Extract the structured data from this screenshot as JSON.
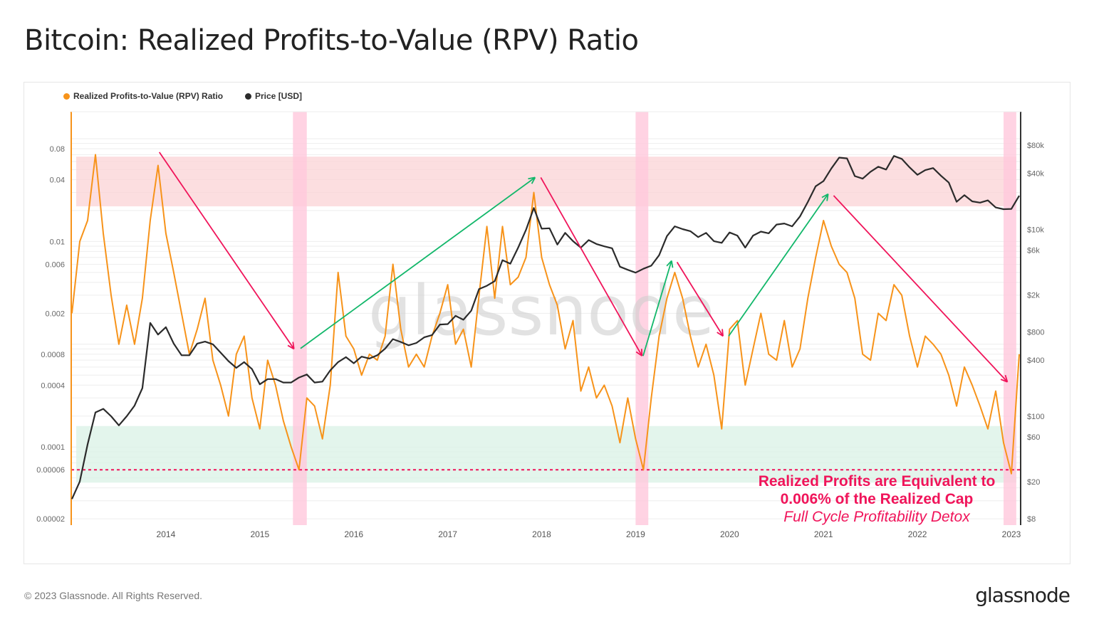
{
  "title": "Bitcoin: Realized Profits-to-Value (RPV) Ratio",
  "footer": {
    "copyright": "© 2023 Glassnode. All Rights Reserved.",
    "logo": "glassnode"
  },
  "watermark": "glassnode",
  "colors": {
    "rpv": "#f7931a",
    "price": "#2b2b2b",
    "red_zone": "#fbd3d6",
    "green_zone": "#d9f2e6",
    "capitulation_band": "#ffc8dc",
    "down_arrow": "#f0145a",
    "up_arrow": "#12b76a",
    "annotation": "#f0145a"
  },
  "chart_data": {
    "type": "line",
    "title": "Bitcoin: Realized Profits-to-Value (RPV) Ratio",
    "legend": [
      {
        "label": "Realized Profits-to-Value (RPV) Ratio",
        "color": "#f7931a"
      },
      {
        "label": "Price [USD]",
        "color": "#2b2b2b"
      }
    ],
    "legend_placement": "top-left",
    "x_ticks": [
      "2014",
      "2015",
      "2016",
      "2017",
      "2018",
      "2019",
      "2020",
      "2021",
      "2022",
      "2023"
    ],
    "y_left": {
      "scale": "log",
      "range": [
        2e-05,
        0.08
      ],
      "ticks": [
        "0.08",
        "0.04",
        "0.01",
        "0.006",
        "0.002",
        "0.0008",
        "0.0004",
        "0.0001",
        "0.00006",
        "0.00002"
      ]
    },
    "y_right": {
      "scale": "log",
      "range": [
        8,
        80000
      ],
      "ticks": [
        {
          "v": 80000,
          "l": "$80k"
        },
        {
          "v": 40000,
          "l": "$40k"
        },
        {
          "v": 10000,
          "l": "$10k"
        },
        {
          "v": 6000,
          "l": "$6k"
        },
        {
          "v": 2000,
          "l": "$2k"
        },
        {
          "v": 800,
          "l": "$800"
        },
        {
          "v": 400,
          "l": "$400"
        },
        {
          "v": 100,
          "l": "$100"
        },
        {
          "v": 60,
          "l": "$60"
        },
        {
          "v": 20,
          "l": "$20"
        },
        {
          "v": 8,
          "l": "$8"
        }
      ]
    },
    "grid": true,
    "dates": [
      "2013-01",
      "2013-02",
      "2013-03",
      "2013-04",
      "2013-05",
      "2013-06",
      "2013-07",
      "2013-08",
      "2013-09",
      "2013-10",
      "2013-11",
      "2013-12",
      "2014-01",
      "2014-02",
      "2014-03",
      "2014-04",
      "2014-05",
      "2014-06",
      "2014-07",
      "2014-08",
      "2014-09",
      "2014-10",
      "2014-11",
      "2014-12",
      "2015-01",
      "2015-02",
      "2015-03",
      "2015-04",
      "2015-05",
      "2015-06",
      "2015-07",
      "2015-08",
      "2015-09",
      "2015-10",
      "2015-11",
      "2015-12",
      "2016-01",
      "2016-02",
      "2016-03",
      "2016-04",
      "2016-05",
      "2016-06",
      "2016-07",
      "2016-08",
      "2016-09",
      "2016-10",
      "2016-11",
      "2016-12",
      "2017-01",
      "2017-02",
      "2017-03",
      "2017-04",
      "2017-05",
      "2017-06",
      "2017-07",
      "2017-08",
      "2017-09",
      "2017-10",
      "2017-11",
      "2017-12",
      "2018-01",
      "2018-02",
      "2018-03",
      "2018-04",
      "2018-05",
      "2018-06",
      "2018-07",
      "2018-08",
      "2018-09",
      "2018-10",
      "2018-11",
      "2018-12",
      "2019-01",
      "2019-02",
      "2019-03",
      "2019-04",
      "2019-05",
      "2019-06",
      "2019-07",
      "2019-08",
      "2019-09",
      "2019-10",
      "2019-11",
      "2019-12",
      "2020-01",
      "2020-02",
      "2020-03",
      "2020-04",
      "2020-05",
      "2020-06",
      "2020-07",
      "2020-08",
      "2020-09",
      "2020-10",
      "2020-11",
      "2020-12",
      "2021-01",
      "2021-02",
      "2021-03",
      "2021-04",
      "2021-05",
      "2021-06",
      "2021-07",
      "2021-08",
      "2021-09",
      "2021-10",
      "2021-11",
      "2021-12",
      "2022-01",
      "2022-02",
      "2022-03",
      "2022-04",
      "2022-05",
      "2022-06",
      "2022-07",
      "2022-08",
      "2022-09",
      "2022-10",
      "2022-11",
      "2022-12",
      "2023-01",
      "2023-02"
    ],
    "series": [
      {
        "name": "Realized Profits-to-Value (RPV) Ratio",
        "axis": "left",
        "values": [
          0.002,
          0.01,
          0.016,
          0.07,
          0.012,
          0.003,
          0.001,
          0.0024,
          0.001,
          0.0028,
          0.016,
          0.055,
          0.012,
          0.005,
          0.002,
          0.0008,
          0.0014,
          0.0028,
          0.0007,
          0.0004,
          0.0002,
          0.0008,
          0.0012,
          0.0003,
          0.00015,
          0.0007,
          0.0004,
          0.00018,
          0.0001,
          6e-05,
          0.0003,
          0.00025,
          0.00012,
          0.0004,
          0.005,
          0.0012,
          0.0009,
          0.0005,
          0.0008,
          0.0007,
          0.0012,
          0.006,
          0.0014,
          0.0006,
          0.0008,
          0.0006,
          0.0012,
          0.002,
          0.0038,
          0.001,
          0.0014,
          0.0006,
          0.003,
          0.014,
          0.0028,
          0.014,
          0.0038,
          0.0045,
          0.007,
          0.03,
          0.007,
          0.0038,
          0.0024,
          0.0009,
          0.0017,
          0.00035,
          0.0006,
          0.0003,
          0.0004,
          0.00025,
          0.00011,
          0.0003,
          0.00012,
          6e-05,
          0.0003,
          0.0012,
          0.0028,
          0.005,
          0.0028,
          0.0012,
          0.0006,
          0.001,
          0.0005,
          0.00015,
          0.0014,
          0.0017,
          0.0004,
          0.0009,
          0.002,
          0.0008,
          0.0007,
          0.0017,
          0.0006,
          0.0009,
          0.0028,
          0.007,
          0.016,
          0.009,
          0.006,
          0.005,
          0.0028,
          0.0008,
          0.0007,
          0.002,
          0.0017,
          0.0038,
          0.003,
          0.0012,
          0.0006,
          0.0012,
          0.001,
          0.0008,
          0.0005,
          0.00025,
          0.0006,
          0.0004,
          0.00025,
          0.00015,
          0.00035,
          0.00011,
          5.5e-05,
          0.0008
        ]
      },
      {
        "name": "Price [USD]",
        "axis": "right",
        "values": [
          13,
          20,
          50,
          110,
          120,
          100,
          80,
          100,
          130,
          200,
          1000,
          750,
          900,
          600,
          450,
          450,
          600,
          630,
          590,
          480,
          390,
          330,
          380,
          320,
          220,
          250,
          250,
          230,
          230,
          260,
          280,
          230,
          235,
          310,
          380,
          430,
          370,
          435,
          415,
          450,
          530,
          670,
          625,
          575,
          610,
          700,
          740,
          960,
          970,
          1190,
          1080,
          1350,
          2300,
          2500,
          2800,
          4700,
          4300,
          6400,
          9900,
          17000,
          10200,
          10300,
          6900,
          9200,
          7500,
          6400,
          7700,
          7000,
          6600,
          6300,
          4000,
          3700,
          3450,
          3800,
          4100,
          5300,
          8500,
          10800,
          10100,
          9600,
          8300,
          9200,
          7500,
          7200,
          9300,
          8600,
          6400,
          8600,
          9500,
          9100,
          11300,
          11600,
          10800,
          13800,
          19700,
          29000,
          33000,
          45000,
          58800,
          57700,
          37300,
          35000,
          41500,
          47000,
          43800,
          61300,
          57000,
          46300,
          38500,
          43200,
          45500,
          37700,
          31800,
          19800,
          23300,
          20000,
          19400,
          20500,
          17200,
          16500,
          16600,
          23000
        ]
      }
    ],
    "zones": [
      {
        "name": "overheated",
        "from": 0.022,
        "to": 0.067,
        "color": "#fbd3d6"
      },
      {
        "name": "undervalued",
        "from": 4.5e-05,
        "to": 0.00016,
        "color": "#d9f2e6"
      }
    ],
    "threshold_line": {
      "value": 6e-05,
      "style": "dashed",
      "color": "#f0145a"
    },
    "capitulation_bands": [
      {
        "from": "2015-05-08",
        "to": "2015-07-01"
      },
      {
        "from": "2019-01-01",
        "to": "2019-02-20"
      },
      {
        "from": "2022-12-01",
        "to": "2023-01-20"
      }
    ],
    "trend_arrows": [
      {
        "dir": "down",
        "from": [
          "2013-12-06",
          0.074
        ],
        "to": [
          "2015-05-12",
          0.0009
        ]
      },
      {
        "dir": "up",
        "from": [
          "2015-06-07",
          0.00091
        ],
        "to": [
          "2017-12-06",
          0.042
        ]
      },
      {
        "dir": "down",
        "from": [
          "2017-12-28",
          0.042
        ],
        "to": [
          "2019-01-26",
          0.00077
        ]
      },
      {
        "dir": "up",
        "from": [
          "2019-01-30",
          0.00077
        ],
        "to": [
          "2019-05-19",
          0.0065
        ]
      },
      {
        "dir": "down",
        "from": [
          "2019-06-10",
          0.0063
        ],
        "to": [
          "2019-12-06",
          0.0012
        ]
      },
      {
        "dir": "up",
        "from": [
          "2019-12-28",
          0.0012
        ],
        "to": [
          "2021-01-19",
          0.029
        ]
      },
      {
        "dir": "down",
        "from": [
          "2021-02-10",
          0.028
        ],
        "to": [
          "2022-12-16",
          0.00043
        ]
      }
    ],
    "annotation": {
      "line1": "Realized Profits are Equivalent to",
      "line2": "0.006% of the Realized Cap",
      "line3": "Full Cycle Profitability Detox"
    }
  }
}
